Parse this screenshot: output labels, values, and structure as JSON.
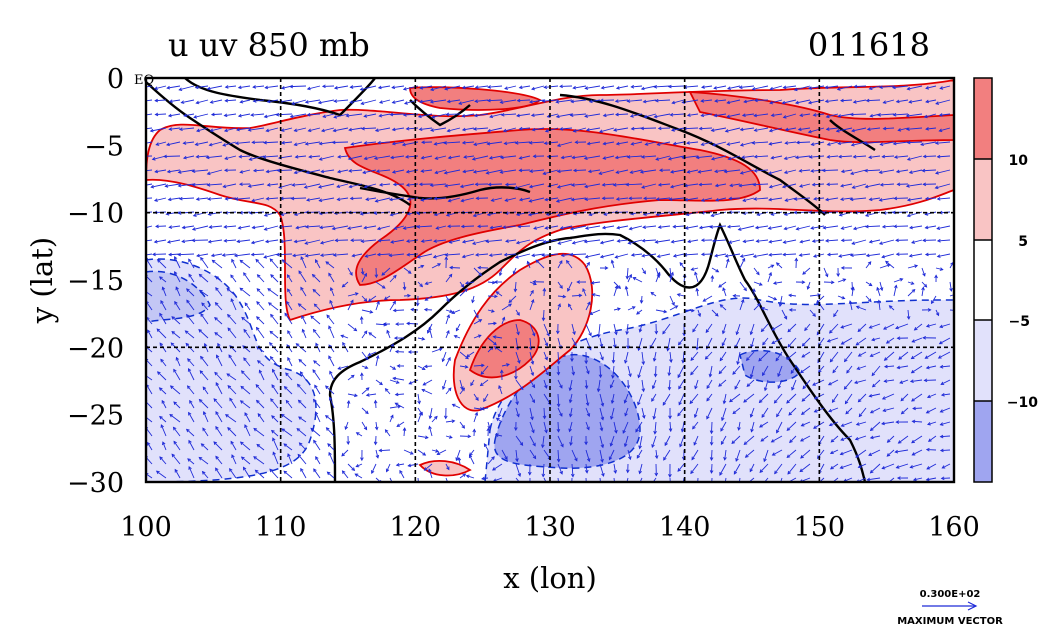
{
  "header": {
    "title": "u  uv  850  mb",
    "date_code": "011618"
  },
  "axes": {
    "x_label": "x (lon)",
    "y_label": "y (lat)",
    "x_ticks": [
      "100",
      "110",
      "120",
      "130",
      "140",
      "150",
      "160"
    ],
    "y_ticks": [
      "0",
      "−5",
      "−10",
      "−15",
      "−20",
      "−25",
      "−30"
    ],
    "eq_label": "EQ",
    "x_range": [
      100,
      160
    ],
    "y_range": [
      -30,
      0
    ],
    "grid_lines_lon": [
      110,
      120,
      130,
      140,
      150
    ],
    "grid_lines_lat": [
      -10,
      -20
    ]
  },
  "colorbar": {
    "labels": [
      "10",
      "5",
      "−5",
      "−10"
    ],
    "colors": [
      "#f27f7f",
      "#f9c4c4",
      "#ffffff",
      "#e1e1fb",
      "#9fa5f0"
    ]
  },
  "vector_key": {
    "value": "0.300E+02",
    "label": "MAXIMUM VECTOR"
  },
  "colors": {
    "vector": "#1f2bd8",
    "pos_contour": "#e00000",
    "neg_contour": "#1030d0",
    "coast": "#000000"
  }
}
